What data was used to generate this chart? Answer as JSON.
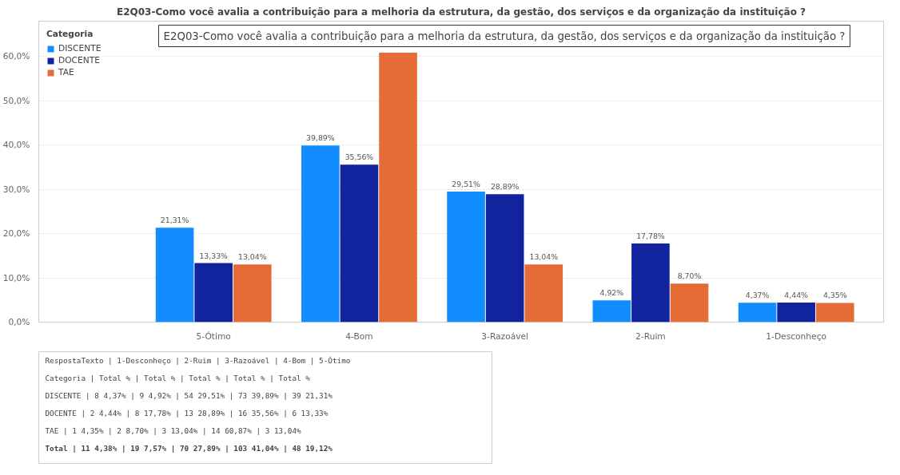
{
  "chart_data": [
    {
      "type": "bar",
      "title": "E2Q03-Como você avalia a contribuição para a melhoria da estrutura, da gestão, dos serviços e da organização da instituição ?",
      "legend_title": "Categoria",
      "legend": "top left",
      "grid": "y",
      "categories": [
        "5-Ótimo",
        "4-Bom",
        "3-Razoável",
        "2-Ruim",
        "1-Desconheço"
      ],
      "ylim": [
        0,
        68
      ],
      "yticks": [
        {
          "value": 0,
          "label": "0,0%"
        },
        {
          "value": 10,
          "label": "10,0%"
        },
        {
          "value": 20,
          "label": "20,0%"
        },
        {
          "value": 30,
          "label": "30,0%"
        },
        {
          "value": 40,
          "label": "40,0%"
        },
        {
          "value": 50,
          "label": "50,0%"
        },
        {
          "value": 60,
          "label": "60,0%"
        }
      ],
      "series": [
        {
          "name": "DISCENTE",
          "color": "#118dff",
          "values": [
            21.31,
            39.89,
            29.51,
            4.92,
            4.37
          ],
          "value_labels": [
            "21,31%",
            "39,89%",
            "29,51%",
            "4,92%",
            "4,37%"
          ]
        },
        {
          "name": "DOCENTE",
          "color": "#12239e",
          "values": [
            13.33,
            35.56,
            28.89,
            17.78,
            4.44
          ],
          "value_labels": [
            "13,33%",
            "35,56%",
            "28,89%",
            "17,78%",
            "4,44%"
          ]
        },
        {
          "name": "TAE",
          "color": "#e66c37",
          "values": [
            13.04,
            60.87,
            13.04,
            8.7,
            4.35
          ],
          "value_labels": [
            "13,04%",
            null,
            "13,04%",
            "8,70%",
            "4,35%"
          ]
        }
      ],
      "annotations": [
        "E2Q03-Como você avalia a contribuição para a melhoria da estrutura, da gestão, dos serviços e da organização da instituição ?"
      ]
    },
    {
      "type": "other",
      "annotations": [
        "RespostaTexto | 1-Desconheço |     2-Ruim    |  3-Razoável   |     4-Bom     |    5-Ótimo",
        "Categoria     | Total      % | Total       % | Total       % | Total       % | Total       %",
        "DISCENTE      |     8  4,37% |     9   4,92% |    54  29,51% |    73  39,89% |    39  21,31%",
        "DOCENTE       |     2  4,44% |     8  17,78% |    13  28,89% |    16  35,56% |     6  13,33%",
        "TAE           |     1  4,35% |     2   8,70% |     3  13,04% |    14  60,87% |     3  13,04%",
        "Total         |    11  4,38% |    19   7,57% |    70  27,89% |   103  41,04% |    48  19,12%"
      ]
    }
  ]
}
